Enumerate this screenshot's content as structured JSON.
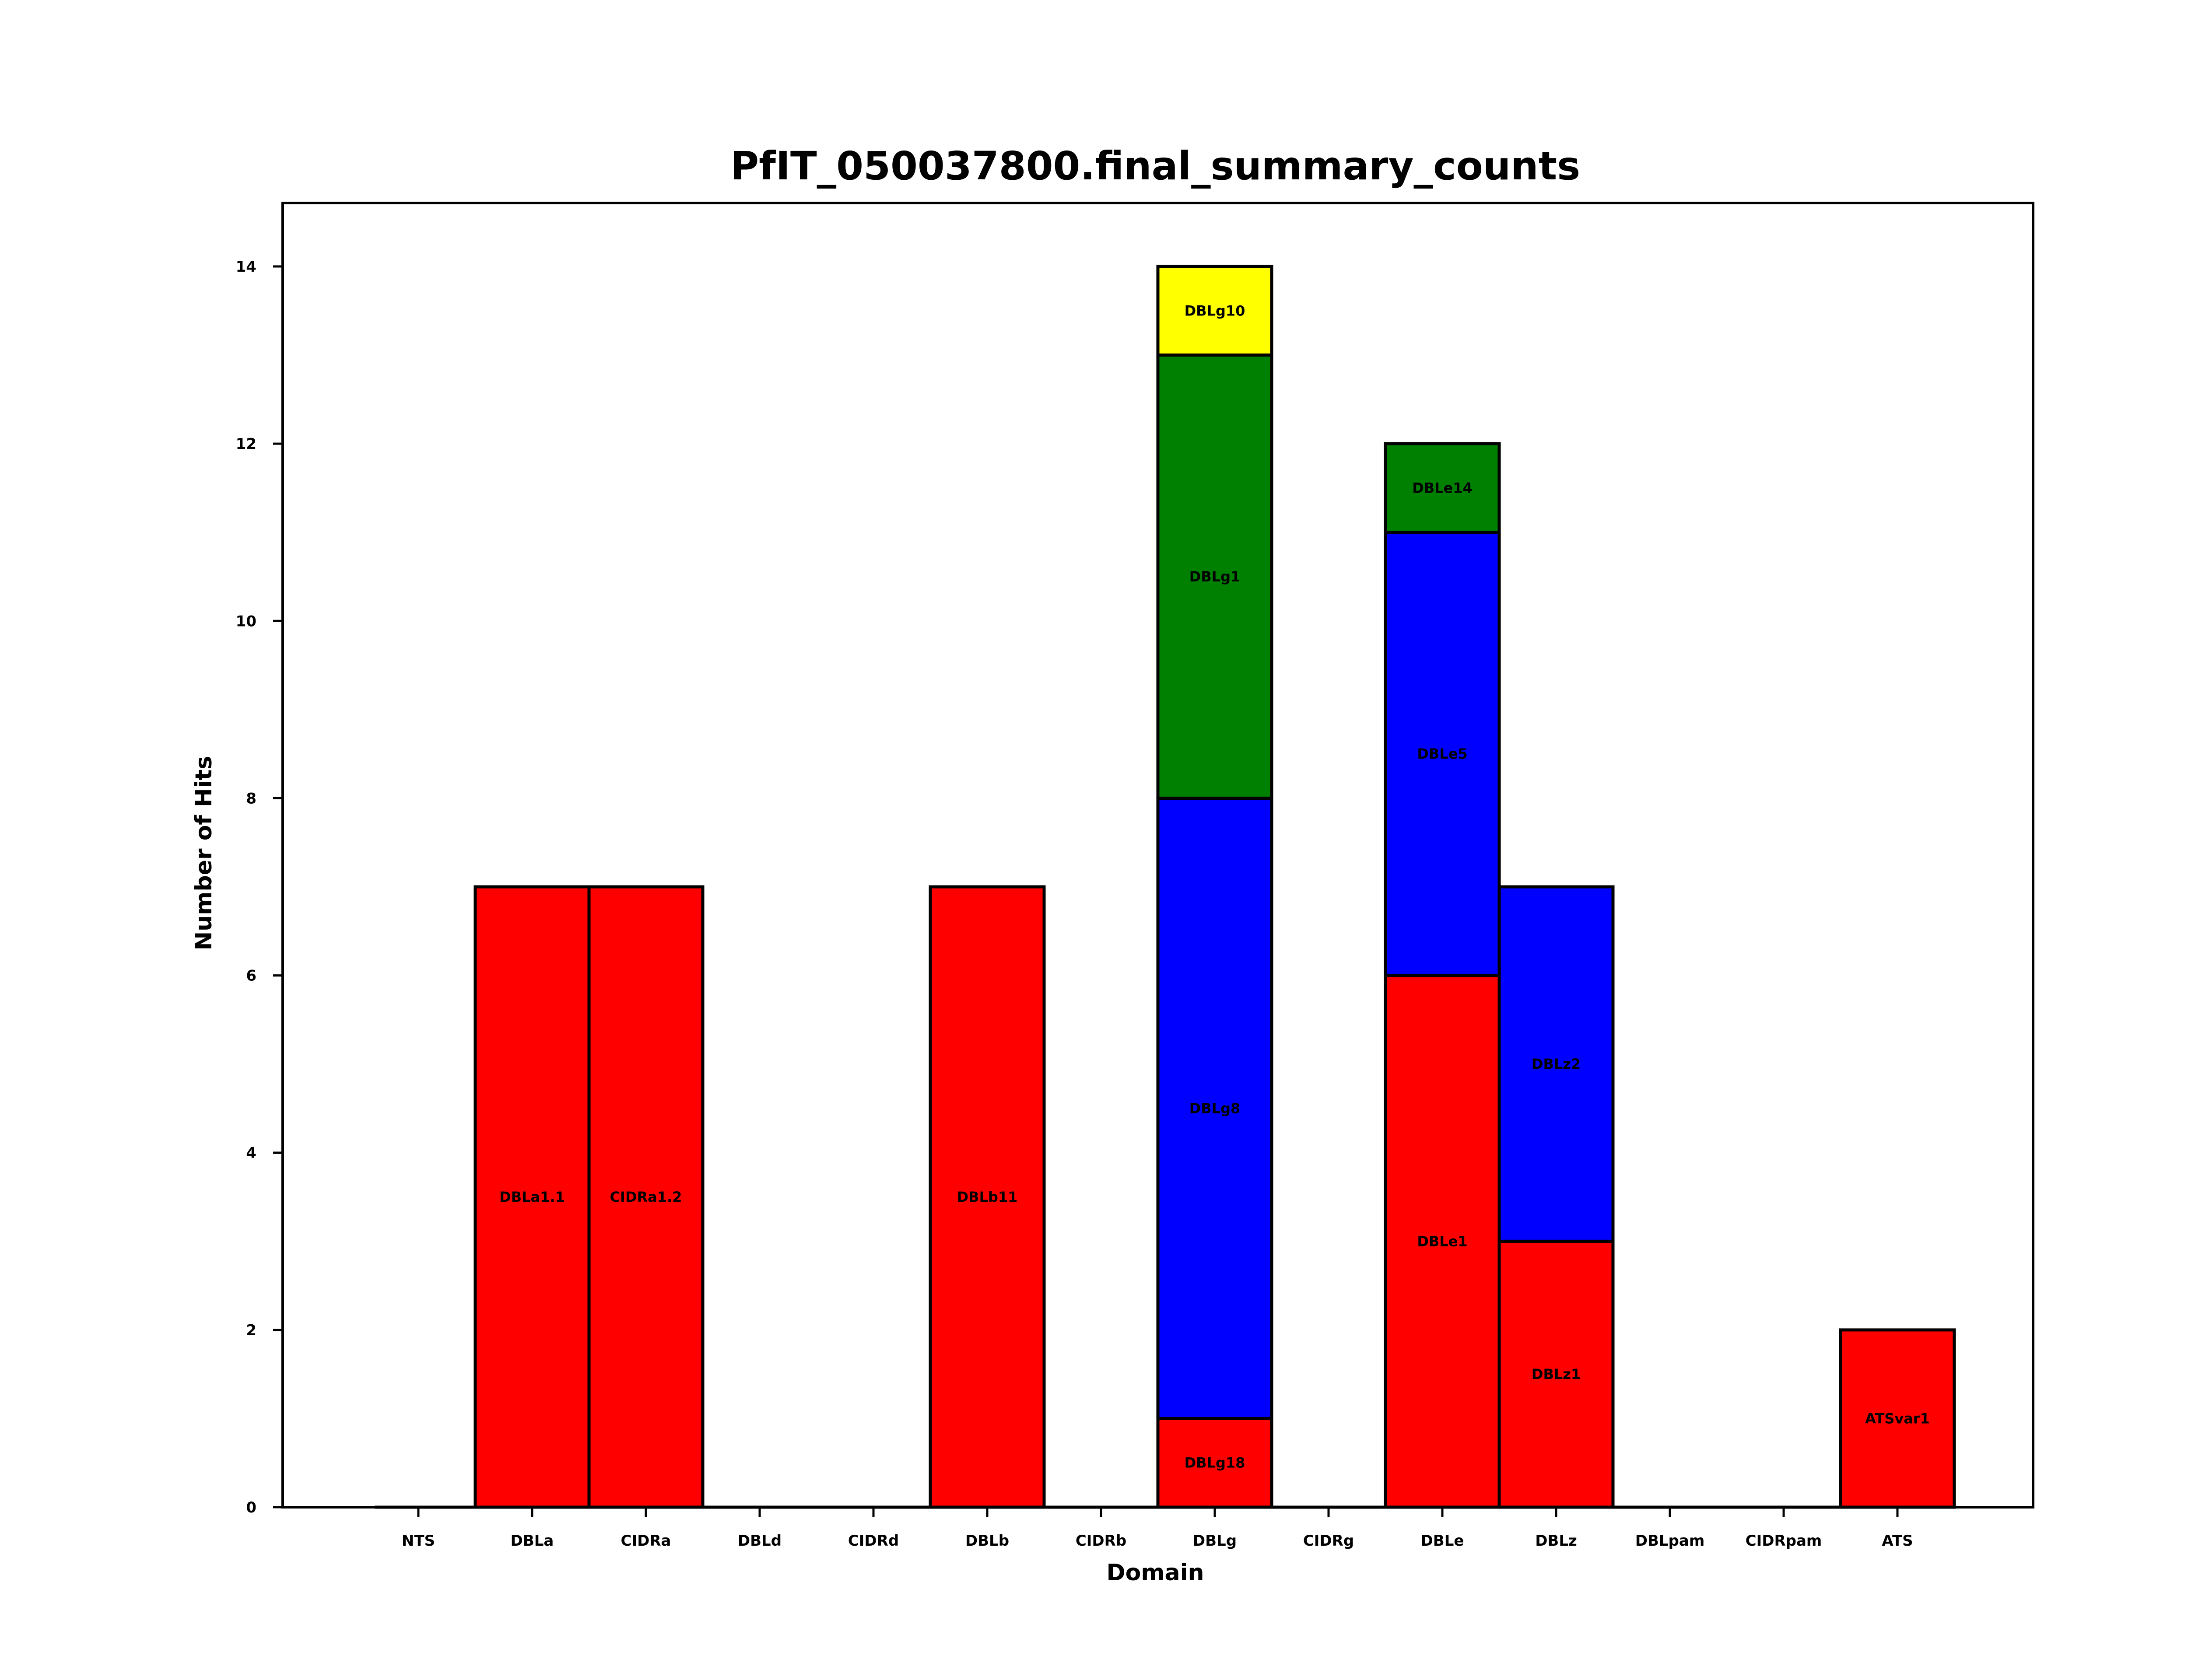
{
  "chart_data": {
    "type": "bar",
    "stacked": true,
    "title": "PfIT_050037800.final_summary_counts",
    "xlabel": "Domain",
    "ylabel": "Number of Hits",
    "ylim": [
      0,
      14.7
    ],
    "yticks": [
      0,
      2,
      4,
      6,
      8,
      10,
      12,
      14
    ],
    "grid": false,
    "legend": "none",
    "categories": [
      "NTS",
      "DBLa",
      "CIDRa",
      "DBLd",
      "CIDRd",
      "DBLb",
      "CIDRb",
      "DBLg",
      "CIDRg",
      "DBLe",
      "DBLz",
      "DBLpam",
      "CIDRpam",
      "ATS"
    ],
    "colors": {
      "red": "#ff0000",
      "blue": "#0000ff",
      "green": "#008000",
      "yellow": "#ffff00",
      "edge": "#000000"
    },
    "bars": [
      {
        "category": "DBLa",
        "segments": [
          {
            "label": "DBLa1.1",
            "value": 7,
            "color": "red"
          }
        ]
      },
      {
        "category": "CIDRa",
        "segments": [
          {
            "label": "CIDRa1.2",
            "value": 7,
            "color": "red"
          }
        ]
      },
      {
        "category": "DBLb",
        "segments": [
          {
            "label": "DBLb11",
            "value": 7,
            "color": "red"
          }
        ]
      },
      {
        "category": "DBLg",
        "segments": [
          {
            "label": "DBLg18",
            "value": 1,
            "color": "red"
          },
          {
            "label": "DBLg8",
            "value": 7,
            "color": "blue"
          },
          {
            "label": "DBLg1",
            "value": 5,
            "color": "green"
          },
          {
            "label": "DBLg10",
            "value": 1,
            "color": "yellow"
          }
        ]
      },
      {
        "category": "DBLe",
        "segments": [
          {
            "label": "DBLe1",
            "value": 6,
            "color": "red"
          },
          {
            "label": "DBLe5",
            "value": 5,
            "color": "blue"
          },
          {
            "label": "DBLe14",
            "value": 1,
            "color": "green"
          }
        ]
      },
      {
        "category": "DBLz",
        "segments": [
          {
            "label": "DBLz1",
            "value": 3,
            "color": "red"
          },
          {
            "label": "DBLz2",
            "value": 4,
            "color": "blue"
          }
        ]
      },
      {
        "category": "ATS",
        "segments": [
          {
            "label": "ATSvar1",
            "value": 2,
            "color": "red"
          }
        ]
      }
    ]
  }
}
